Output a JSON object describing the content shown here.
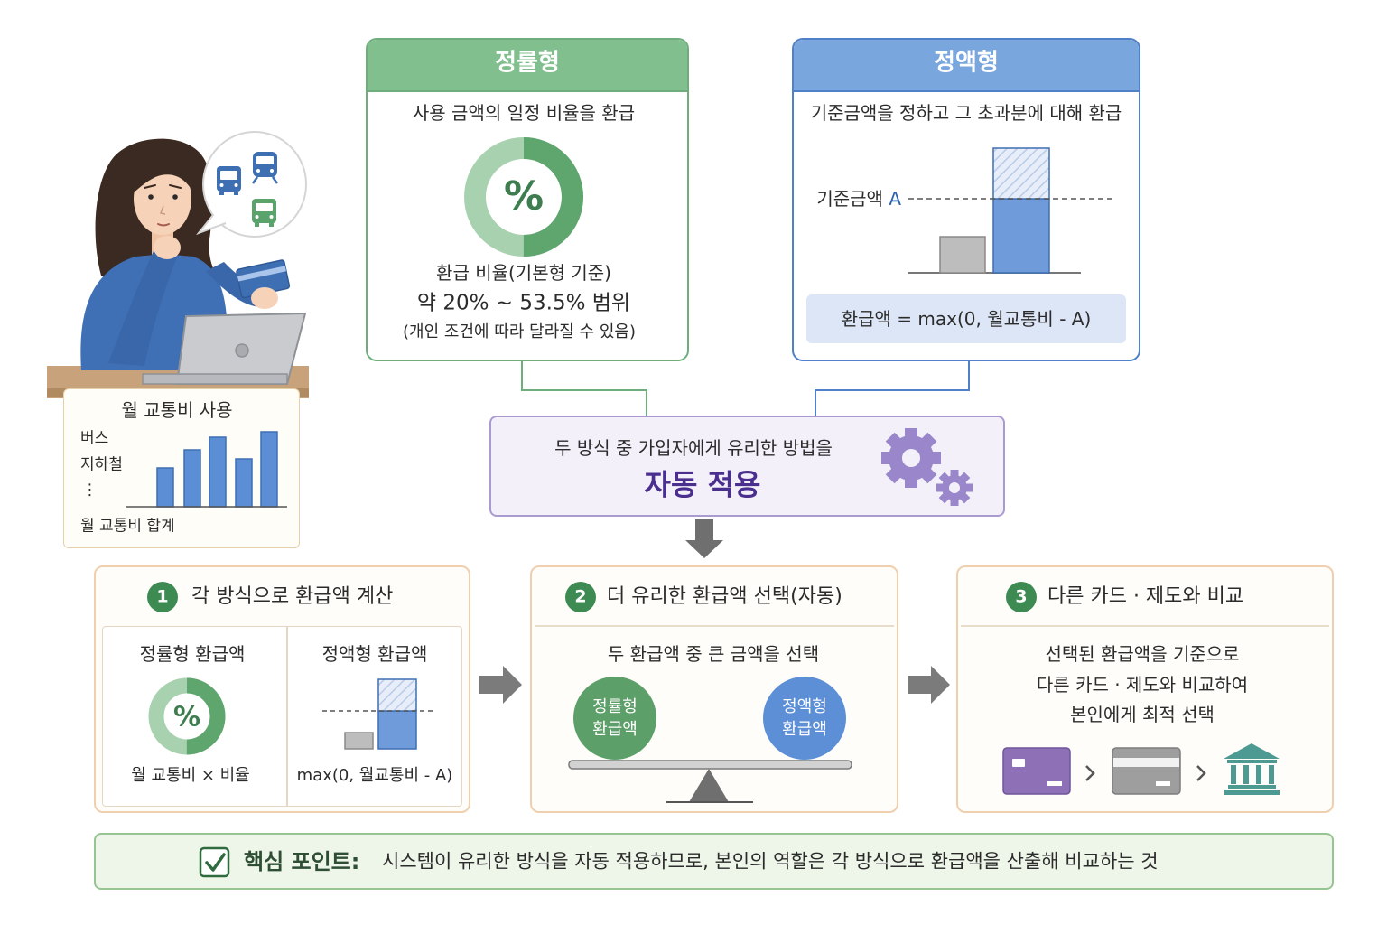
{
  "speech_bubble": {
    "icons": [
      "bus-icon",
      "train-icon",
      "bus-icon"
    ]
  },
  "usage_card": {
    "title": "월 교통비 사용",
    "rows": [
      "버스",
      "지하철",
      "⋮"
    ],
    "total_label": "월 교통비 합계"
  },
  "flat_rate": {
    "title": "정률형",
    "description": "사용 금액의 일정 비율을 환급",
    "symbol": "%",
    "rate_title": "환급 비율(기본형 기준)",
    "rate_range": "약 20% ~ 53.5% 범위",
    "note": "(개인 조건에 따라 달라질 수 있음)"
  },
  "fixed_amount": {
    "title": "정액형",
    "description": "기준금액을 정하고 그 초과분에 대해 환급",
    "threshold_label": "기준금액",
    "threshold_symbol": "A",
    "formula": "환급액 = max(0, 월교통비 - A)"
  },
  "auto_apply": {
    "line1": "두 방식 중 가입자에게 유리한 방법을",
    "line2": "자동 적용",
    "icon": "gear-icon"
  },
  "steps": [
    {
      "number": "1",
      "title": "각 방식으로 환급액 계산",
      "flat_title": "정률형 환급액",
      "flat_symbol": "%",
      "flat_caption": "월 교통비 × 비율",
      "fixed_title": "정액형 환급액",
      "fixed_caption": "max(0, 월교통비 - A)"
    },
    {
      "number": "2",
      "title": "더 유리한 환급액 선택(자동)",
      "text": "두 환급액 중 큰 금액을 선택",
      "left_option": [
        "정률형",
        "환급액"
      ],
      "right_option": [
        "정액형",
        "환급액"
      ]
    },
    {
      "number": "3",
      "title": "다른 카드 · 제도와 비교",
      "lines": [
        "선택된 환급액을 기준으로",
        "다른 카드 · 제도와 비교하여",
        "본인에게 최적 선택"
      ],
      "icons": [
        "credit-card-icon",
        "chevron-right-icon",
        "credit-card-icon",
        "chevron-right-icon",
        "bank-icon"
      ]
    }
  ],
  "key_point": {
    "icon": "checkbox-icon",
    "label": "핵심 포인트:",
    "text": "시스템이 유리한 방식을 자동 적용하므로, 본인의 역할은 각 방식으로 환급액을 산출해 비교하는 것"
  },
  "colors": {
    "flat_rate": "#82bf8e",
    "fixed_amount": "#79a6dd",
    "auto_apply_text": "#4b2f8f",
    "step_number": "#3d8b52",
    "key_point_bg": "#eef5e9",
    "bank": "#4d9a93",
    "card_purple": "#8d70b6"
  }
}
